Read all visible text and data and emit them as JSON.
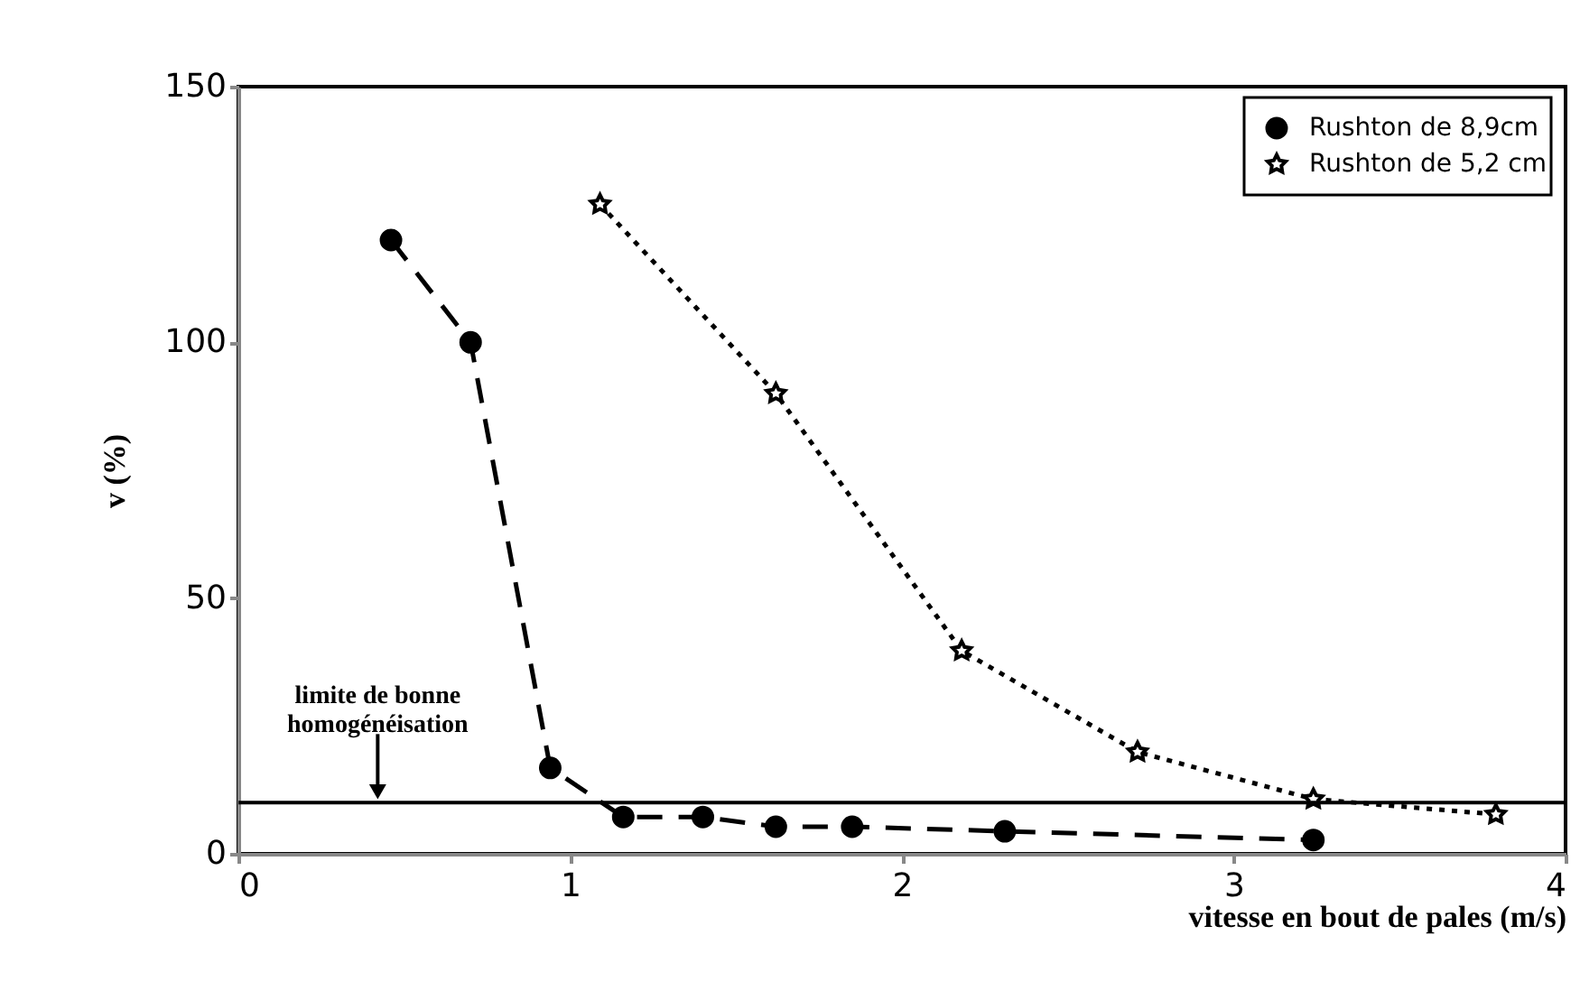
{
  "chart_data": {
    "type": "line",
    "xlabel": "vitesse en bout de pales (m/s)",
    "ylabel": "v (%)",
    "xlim": [
      0,
      4
    ],
    "xticks": [
      0,
      1,
      2,
      3,
      4
    ],
    "ylim": [
      0,
      150
    ],
    "yticks": [
      0,
      50,
      100,
      150
    ],
    "grid": false,
    "legend": "top right",
    "series": [
      {
        "name": "Rushton de 8,9cm",
        "color": "#000000",
        "marker": "circle",
        "line_style": "dashed",
        "x": [
          0.46,
          0.7,
          0.94,
          1.16,
          1.4,
          1.62,
          1.85,
          2.31,
          3.24
        ],
        "values": [
          120,
          100,
          16.8,
          7.2,
          7.2,
          5.3,
          5.3,
          4.4,
          2.7
        ]
      },
      {
        "name": "Rushton de 5,2 cm",
        "color": "#000000",
        "marker": "star",
        "line_style": "dotted",
        "x": [
          1.09,
          1.62,
          2.18,
          2.71,
          3.24,
          3.79
        ],
        "values": [
          127,
          90,
          39.7,
          19.9,
          10.7,
          7.7
        ]
      }
    ],
    "ref_lines": [
      {
        "axis": "y",
        "value": 10,
        "color": "#000000"
      }
    ],
    "annotations": [
      {
        "text": "limite de bonne\nhomogénéisation",
        "x": 0.42,
        "y": 10
      }
    ]
  }
}
